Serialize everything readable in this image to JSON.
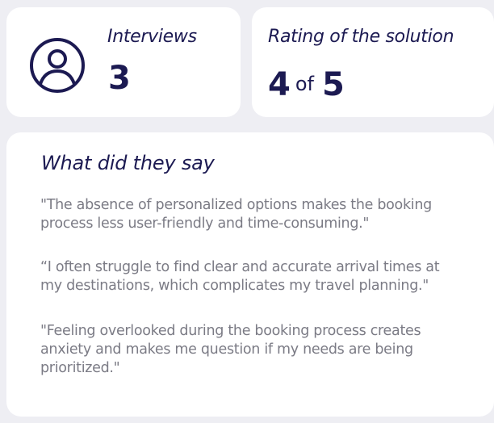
{
  "stats": {
    "interviews": {
      "label": "Interviews",
      "value": "3",
      "icon": "user-icon"
    },
    "rating": {
      "label": "Rating of the solution",
      "value": "4",
      "of": "of",
      "max": "5",
      "score_fraction": 0.8
    }
  },
  "feedback": {
    "title": "What did they say",
    "quotes": [
      "\"The absence of personalized options makes the booking process less user-friendly and time-consuming.\"",
      "“I often struggle to find clear and accurate arrival times at my destinations, which complicates my travel planning.\"",
      "\"Feeling overlooked during the booking process creates anxiety and makes me question if my needs are being prioritized.\""
    ]
  },
  "colors": {
    "background": "#eeeef3",
    "card": "#ffffff",
    "primary": "#1c1a52",
    "quote_text": "#7b7b85"
  }
}
